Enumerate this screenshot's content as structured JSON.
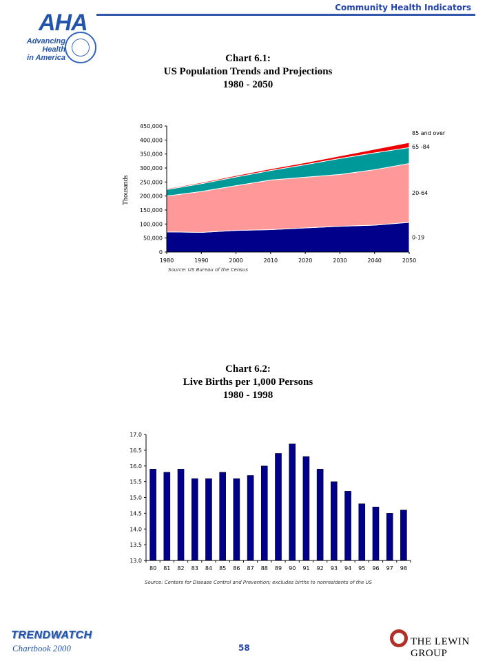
{
  "header": {
    "title": "Community Health Indicators"
  },
  "logo": {
    "name": "AHA",
    "tagline_line1": "Advancing Health",
    "tagline_line2": "in America"
  },
  "footer": {
    "brand": "TRENDWATCH",
    "chartbook": "Chartbook 2000",
    "page_number": "58",
    "publisher": "Lewin Group",
    "publisher_tm": "THE LEWIN GROUP"
  },
  "colors": {
    "band_0_19": "#00008b",
    "band_20_64": "#ff9999",
    "band_65_84": "#009999",
    "band_85": "#ee0000",
    "bar": "#00008b",
    "header_blue": "#2244aa"
  },
  "chart_data": [
    {
      "type": "area",
      "title_line1": "Chart 6.1:",
      "title_line2": "US Population Trends and Projections",
      "title_line3": "1980 - 2050",
      "ylabel": "Thousands",
      "xlabel": "",
      "source": "Source: US Bureau of the Census",
      "x": [
        1980,
        1990,
        2000,
        2010,
        2020,
        2030,
        2040,
        2050
      ],
      "ylim": [
        0,
        450000
      ],
      "yticks": [
        "0",
        "50,000",
        "100,000",
        "150,000",
        "200,000",
        "250,000",
        "300,000",
        "350,000",
        "400,000",
        "450,000"
      ],
      "stacked": true,
      "series": [
        {
          "name": "0-19",
          "values": [
            72000,
            70000,
            77000,
            80000,
            86000,
            92000,
            96000,
            106000
          ]
        },
        {
          "name": "20-64",
          "values": [
            128000,
            146000,
            160000,
            177000,
            181000,
            185000,
            198000,
            210000
          ]
        },
        {
          "name": "65 -84",
          "values": [
            23000,
            28000,
            31000,
            34000,
            45000,
            57000,
            60000,
            57000
          ]
        },
        {
          "name": "85  and over",
          "values": [
            3000,
            4000,
            5000,
            6000,
            7000,
            9000,
            13000,
            18000
          ]
        }
      ],
      "legend": "right"
    },
    {
      "type": "bar",
      "title_line1": "Chart 6.2:",
      "title_line2": "Live Births per 1,000 Persons",
      "title_line3": "1980 - 1998",
      "source": "Source: Centers for Disease Control and Prevention; excludes births to nonresidents of the US",
      "categories": [
        "80",
        "81",
        "82",
        "83",
        "84",
        "85",
        "86",
        "87",
        "88",
        "89",
        "90",
        "91",
        "92",
        "93",
        "94",
        "95",
        "96",
        "97",
        "98"
      ],
      "values": [
        15.9,
        15.8,
        15.9,
        15.6,
        15.6,
        15.8,
        15.6,
        15.7,
        16.0,
        16.4,
        16.7,
        16.3,
        15.9,
        15.5,
        15.2,
        14.8,
        14.7,
        14.5,
        14.6
      ],
      "ylim": [
        13.0,
        17.0
      ],
      "yticks": [
        "13.0",
        "13.5",
        "14.0",
        "14.5",
        "15.0",
        "15.5",
        "16.0",
        "16.5",
        "17.0"
      ]
    }
  ]
}
